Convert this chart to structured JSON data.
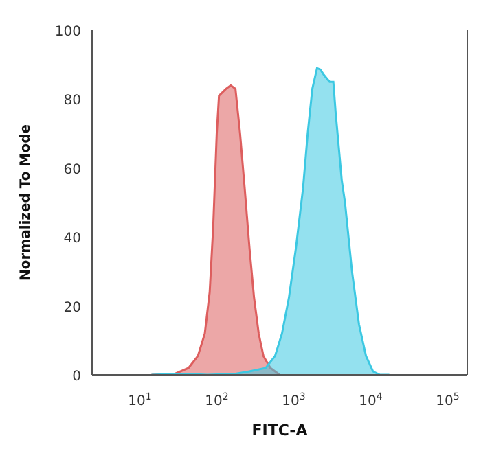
{
  "chart_data": {
    "type": "area",
    "xlabel": "FITC-A",
    "ylabel": "Normalized To Mode",
    "log": "x",
    "xlim": [
      2.4,
      180000
    ],
    "ylim": [
      0,
      100
    ],
    "xticks": [
      {
        "value": 10,
        "label": "10$^{1}$"
      },
      {
        "value": 100,
        "label": "10$^{2}$"
      },
      {
        "value": 1000,
        "label": "10$^{3}$"
      },
      {
        "value": 10000,
        "label": "10$^{4}$"
      },
      {
        "value": 100000,
        "label": "10$^{5}$"
      }
    ],
    "yticks": [
      0,
      20,
      40,
      60,
      80,
      100
    ],
    "grid": false,
    "series": [
      {
        "color": "#dd5e5e",
        "x": [
          14.2,
          28.5,
          43,
          57,
          70,
          81,
          90,
          100,
          107,
          132,
          152,
          175,
          201,
          231,
          266,
          305,
          351,
          404,
          498,
          658
        ],
        "values": [
          0,
          0.3,
          2,
          5.5,
          12,
          24,
          43,
          70,
          81,
          83,
          84,
          83,
          70,
          54,
          37,
          22.5,
          12,
          5.5,
          2,
          0
        ]
      },
      {
        "color": "#3cc8e2",
        "x": [
          14.2,
          37.7,
          75.7,
          175,
          266,
          433,
          573,
          705,
          869,
          1072,
          1321,
          1520,
          1747,
          2010,
          2215,
          2476,
          2930,
          3275,
          3510,
          4210,
          4640,
          5725,
          7050,
          8690,
          10720,
          13210,
          17470
        ],
        "values": [
          0,
          0.3,
          0,
          0.3,
          1,
          2,
          5.5,
          12,
          22.5,
          37,
          54,
          70,
          83,
          89,
          88.6,
          87,
          85,
          85,
          76,
          56.5,
          50,
          30,
          14.7,
          5.5,
          1,
          0,
          0
        ]
      }
    ]
  }
}
